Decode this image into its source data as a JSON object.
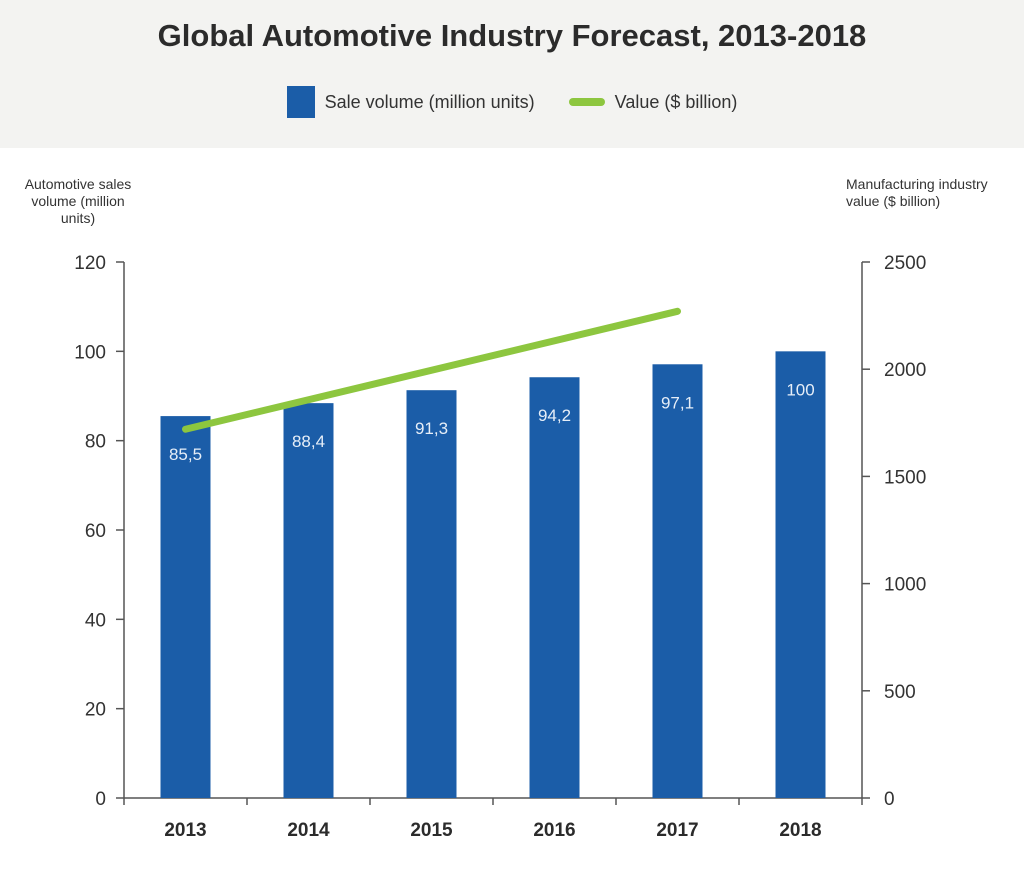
{
  "header": {
    "title": "Global Automotive Industry Forecast, 2013-2018"
  },
  "legend": [
    {
      "label": "Sale volume (million units)",
      "kind": "bar",
      "color": "#1b5da8"
    },
    {
      "label": "Value ($ billion)",
      "kind": "line",
      "color": "#8dc63f"
    }
  ],
  "axes": {
    "left_title": "Automotive sales volume (million units)",
    "right_title": "Manufacturing industry value ($ billion)"
  },
  "colors": {
    "bar": "#1b5da8",
    "line": "#8dc63f",
    "axis": "#555555",
    "header_bg": "#f3f3f1",
    "data_label": "#e6eef8"
  },
  "chart_data": {
    "type": "bar",
    "title": "Global Automotive Industry Forecast, 2013-2018",
    "categories": [
      "2013",
      "2014",
      "2015",
      "2016",
      "2017",
      "2018"
    ],
    "series": [
      {
        "name": "Sale volume (million units)",
        "type": "bar",
        "axis": "left",
        "values": [
          85.5,
          88.4,
          91.3,
          94.2,
          97.1,
          100
        ],
        "labels": [
          "85,5",
          "88,4",
          "91,3",
          "94,2",
          "97,1",
          "100"
        ]
      },
      {
        "name": "Value ($ billion)",
        "type": "line",
        "axis": "right",
        "x": [
          "2013",
          "2017"
        ],
        "values": [
          1720,
          2270
        ]
      }
    ],
    "ylabel": "Automotive sales volume (million units)",
    "y2label": "Manufacturing industry value ($ billion)",
    "ylim": [
      0,
      120
    ],
    "y2lim": [
      0,
      2500
    ],
    "yticks": [
      0,
      20,
      40,
      60,
      80,
      100,
      120
    ],
    "y2ticks": [
      0,
      500,
      1000,
      1500,
      2000,
      2500
    ],
    "grid": false,
    "legend_position": "top-center"
  }
}
